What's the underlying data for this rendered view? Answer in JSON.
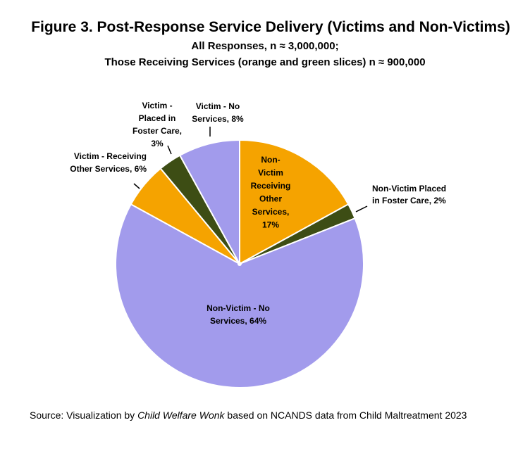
{
  "title": "Figure 3. Post-Response Service Delivery  (Victims and Non-Victims)",
  "subtitle_line1": "All Responses,  n ≈ 3,000,000;",
  "subtitle_line2": "Those Receiving Services (orange and green slices) n ≈ 900,000",
  "source": {
    "prefix": "Source: Visualization by ",
    "italic": "Child Welfare Wonk",
    "suffix": "  based on NCANDS data from  Child Maltreatment 2023"
  },
  "colors": {
    "no_services": "#a29bec",
    "other_services": "#f5a300",
    "foster_care": "#3d4d14",
    "slice_border": "#ffffff"
  },
  "chart_data": {
    "type": "pie",
    "title": "Figure 3. Post-Response Service Delivery  (Victims and Non-Victims)",
    "slices": [
      {
        "label": "Non-Victim Receiving Other Services",
        "value": 17,
        "label_lines": [
          "Non-",
          "Victim",
          "Receiving",
          "Other",
          "Services,",
          "17%"
        ],
        "color": "#f5a300"
      },
      {
        "label": "Non-Victim Placed in Foster Care",
        "value": 2,
        "label_lines": [
          "Non-Victim Placed",
          "in Foster Care, 2%"
        ],
        "color": "#3d4d14"
      },
      {
        "label": "Non-Victim - No Services",
        "value": 64,
        "label_lines": [
          "Non-Victim - No",
          "Services, 64%"
        ],
        "color": "#a29bec"
      },
      {
        "label": "Victim - Receiving Other Services",
        "value": 6,
        "label_lines": [
          "Victim - Receiving",
          "Other Services, 6%"
        ],
        "color": "#f5a300"
      },
      {
        "label": "Victim - Placed in Foster Care",
        "value": 3,
        "label_lines": [
          "Victim -",
          "Placed in",
          "Foster Care,",
          "3%"
        ],
        "color": "#3d4d14"
      },
      {
        "label": "Victim - No Services",
        "value": 8,
        "label_lines": [
          "Victim - No",
          "Services, 8%"
        ],
        "color": "#a29bec"
      }
    ]
  }
}
